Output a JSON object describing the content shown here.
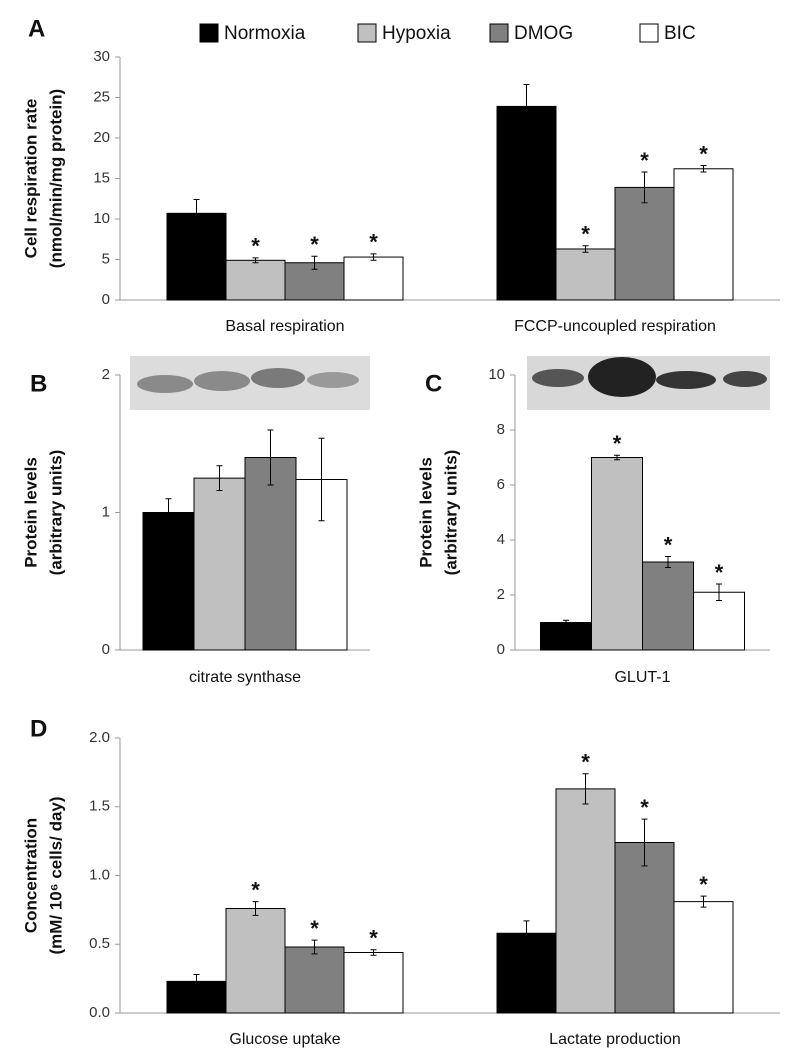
{
  "chart_data": [
    {
      "type": "bar",
      "panel": "A",
      "ylabel": [
        "Cell respiration rate",
        "(nmol/min/mg protein)"
      ],
      "categories": [
        "Basal respiration",
        "FCCP-uncoupled respiration"
      ],
      "ylim": [
        0,
        30
      ],
      "yticks": [
        0,
        5,
        10,
        15,
        20,
        25,
        30
      ],
      "grid": false,
      "legend": "top",
      "series": [
        {
          "name": "Normoxia",
          "color": "#000000",
          "values": [
            10.7,
            23.9
          ],
          "errors": [
            1.7,
            2.7
          ],
          "significance": [
            null,
            null
          ]
        },
        {
          "name": "Hypoxia",
          "color": "#c0c0c0",
          "values": [
            4.9,
            6.3
          ],
          "errors": [
            0.3,
            0.4
          ],
          "significance": [
            "*",
            "*"
          ]
        },
        {
          "name": "DMOG",
          "color": "#808080",
          "values": [
            4.6,
            13.9
          ],
          "errors": [
            0.8,
            1.9
          ],
          "significance": [
            "*",
            "*"
          ]
        },
        {
          "name": "BIC",
          "color": "#ffffff",
          "values": [
            5.3,
            16.2
          ],
          "errors": [
            0.4,
            0.4
          ],
          "significance": [
            "*",
            "*"
          ]
        }
      ]
    },
    {
      "type": "bar",
      "panel": "B",
      "ylabel": [
        "Protein levels",
        "(arbitrary units)"
      ],
      "categories": [
        "citrate synthase"
      ],
      "ylim": [
        0,
        2
      ],
      "yticks": [
        0,
        1,
        2
      ],
      "grid": false,
      "series": [
        {
          "color": "#000000",
          "values": [
            1.0
          ],
          "errors": [
            0.1
          ]
        },
        {
          "color": "#c0c0c0",
          "values": [
            1.25
          ],
          "errors": [
            0.09
          ]
        },
        {
          "color": "#808080",
          "values": [
            1.4
          ],
          "errors": [
            0.2
          ]
        },
        {
          "color": "#ffffff",
          "values": [
            1.24
          ],
          "errors": [
            0.3
          ]
        }
      ]
    },
    {
      "type": "bar",
      "panel": "C",
      "ylabel": [
        "Protein levels",
        "(arbitrary units)"
      ],
      "categories": [
        "GLUT-1"
      ],
      "ylim": [
        0,
        10
      ],
      "yticks": [
        0,
        2,
        4,
        6,
        8,
        10
      ],
      "grid": false,
      "series": [
        {
          "color": "#000000",
          "values": [
            1.0
          ],
          "errors": [
            0.08
          ],
          "significance": [
            null
          ]
        },
        {
          "color": "#c0c0c0",
          "values": [
            7.0
          ],
          "errors": [
            0.08
          ],
          "significance": [
            "*"
          ]
        },
        {
          "color": "#808080",
          "values": [
            3.2
          ],
          "errors": [
            0.2
          ],
          "significance": [
            "*"
          ]
        },
        {
          "color": "#ffffff",
          "values": [
            2.1
          ],
          "errors": [
            0.3
          ],
          "significance": [
            "*"
          ]
        }
      ]
    },
    {
      "type": "bar",
      "panel": "D",
      "ylabel": [
        "Concentration",
        "(mM/ 10⁶ cells/ day)"
      ],
      "categories": [
        "Glucose uptake",
        "Lactate production"
      ],
      "ylim": [
        0,
        2
      ],
      "yticks": [
        {
          "value": 0,
          "label": "0.0"
        },
        0.5,
        {
          "value": 1,
          "label": "1.0"
        },
        1.5,
        {
          "value": 2,
          "label": "2.0"
        }
      ],
      "grid": false,
      "series": [
        {
          "color": "#000000",
          "values": [
            0.23,
            0.58
          ],
          "errors": [
            0.05,
            0.09
          ],
          "significance": [
            null,
            null
          ]
        },
        {
          "color": "#c0c0c0",
          "values": [
            0.76,
            1.63
          ],
          "errors": [
            0.05,
            0.11
          ],
          "significance": [
            "*",
            "*"
          ]
        },
        {
          "color": "#808080",
          "values": [
            0.48,
            1.24
          ],
          "errors": [
            0.05,
            0.17
          ],
          "significance": [
            "*",
            "*"
          ]
        },
        {
          "color": "#ffffff",
          "values": [
            0.44,
            0.81
          ],
          "errors": [
            0.02,
            0.04
          ],
          "significance": [
            "*",
            "*"
          ]
        }
      ]
    }
  ]
}
